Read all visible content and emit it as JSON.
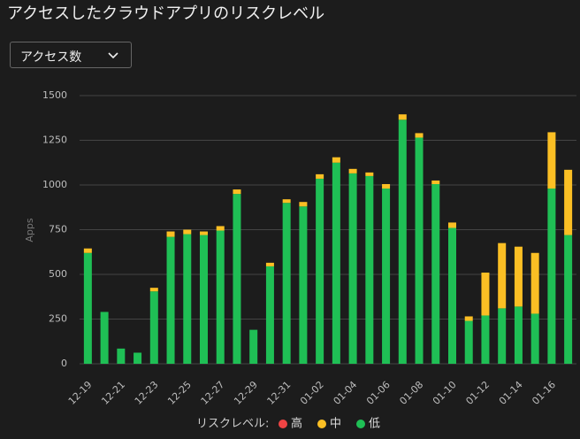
{
  "header": {
    "title": "アクセスしたクラウドアプリのリスクレベル",
    "dropdown": "アクセス数"
  },
  "chart_data": {
    "type": "stacked_bar",
    "y_label": "Apps",
    "legend_title": "リスクレベル:",
    "categories": [
      "12-19",
      null,
      "12-21",
      null,
      "12-23",
      null,
      "12-25",
      null,
      "12-27",
      null,
      "12-29",
      null,
      "12-31",
      null,
      "01-02",
      null,
      "01-04",
      null,
      "01-06",
      null,
      "01-08",
      null,
      "01-10",
      null,
      "01-12",
      null,
      "01-14",
      null,
      "01-16",
      null
    ],
    "series": [
      {
        "name": "高",
        "color": "#ef4444",
        "values": [
          0,
          0,
          0,
          0,
          0,
          0,
          0,
          0,
          0,
          0,
          0,
          0,
          0,
          0,
          0,
          0,
          0,
          0,
          0,
          0,
          0,
          0,
          0,
          0,
          0,
          0,
          0,
          0,
          0,
          0
        ]
      },
      {
        "name": "中",
        "color": "#fbbf24",
        "values": [
          25,
          0,
          0,
          0,
          20,
          30,
          25,
          20,
          25,
          25,
          0,
          20,
          20,
          25,
          25,
          30,
          25,
          20,
          25,
          30,
          25,
          20,
          30,
          25,
          240,
          365,
          335,
          340,
          315,
          365
        ]
      },
      {
        "name": "低",
        "color": "#1fbf55",
        "values": [
          620,
          290,
          85,
          62,
          405,
          710,
          725,
          720,
          745,
          950,
          190,
          545,
          900,
          880,
          1035,
          1125,
          1065,
          1050,
          980,
          1365,
          1265,
          1005,
          760,
          240,
          270,
          310,
          320,
          280,
          980,
          720
        ]
      }
    ],
    "ylim": [
      0,
      1500
    ],
    "yticks": [
      0,
      250,
      500,
      750,
      1000,
      {
        "value": 1250,
        "label": "1250"
      },
      {
        "value": 1500,
        "label": "1500"
      }
    ],
    "grid": true
  }
}
